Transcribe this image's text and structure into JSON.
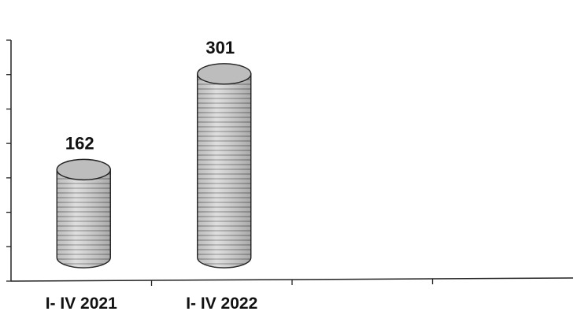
{
  "chart_data": {
    "type": "bar",
    "bar_style": "3d-cylinder",
    "categories": [
      "I- IV 2021",
      "I- IV 2022"
    ],
    "values": [
      162,
      301
    ],
    "data_labels": [
      "162",
      "301"
    ],
    "ylim": [
      0,
      350
    ],
    "y_tick_step": 50,
    "y_tick_labels_shown": false,
    "grid": false,
    "legend": "none",
    "colors": {
      "bar_fill": "#d8d8d8",
      "bar_stripe": "#8a8a8a",
      "bar_top": "#bdbdbd",
      "axis": "#222222",
      "text": "#111111"
    }
  }
}
